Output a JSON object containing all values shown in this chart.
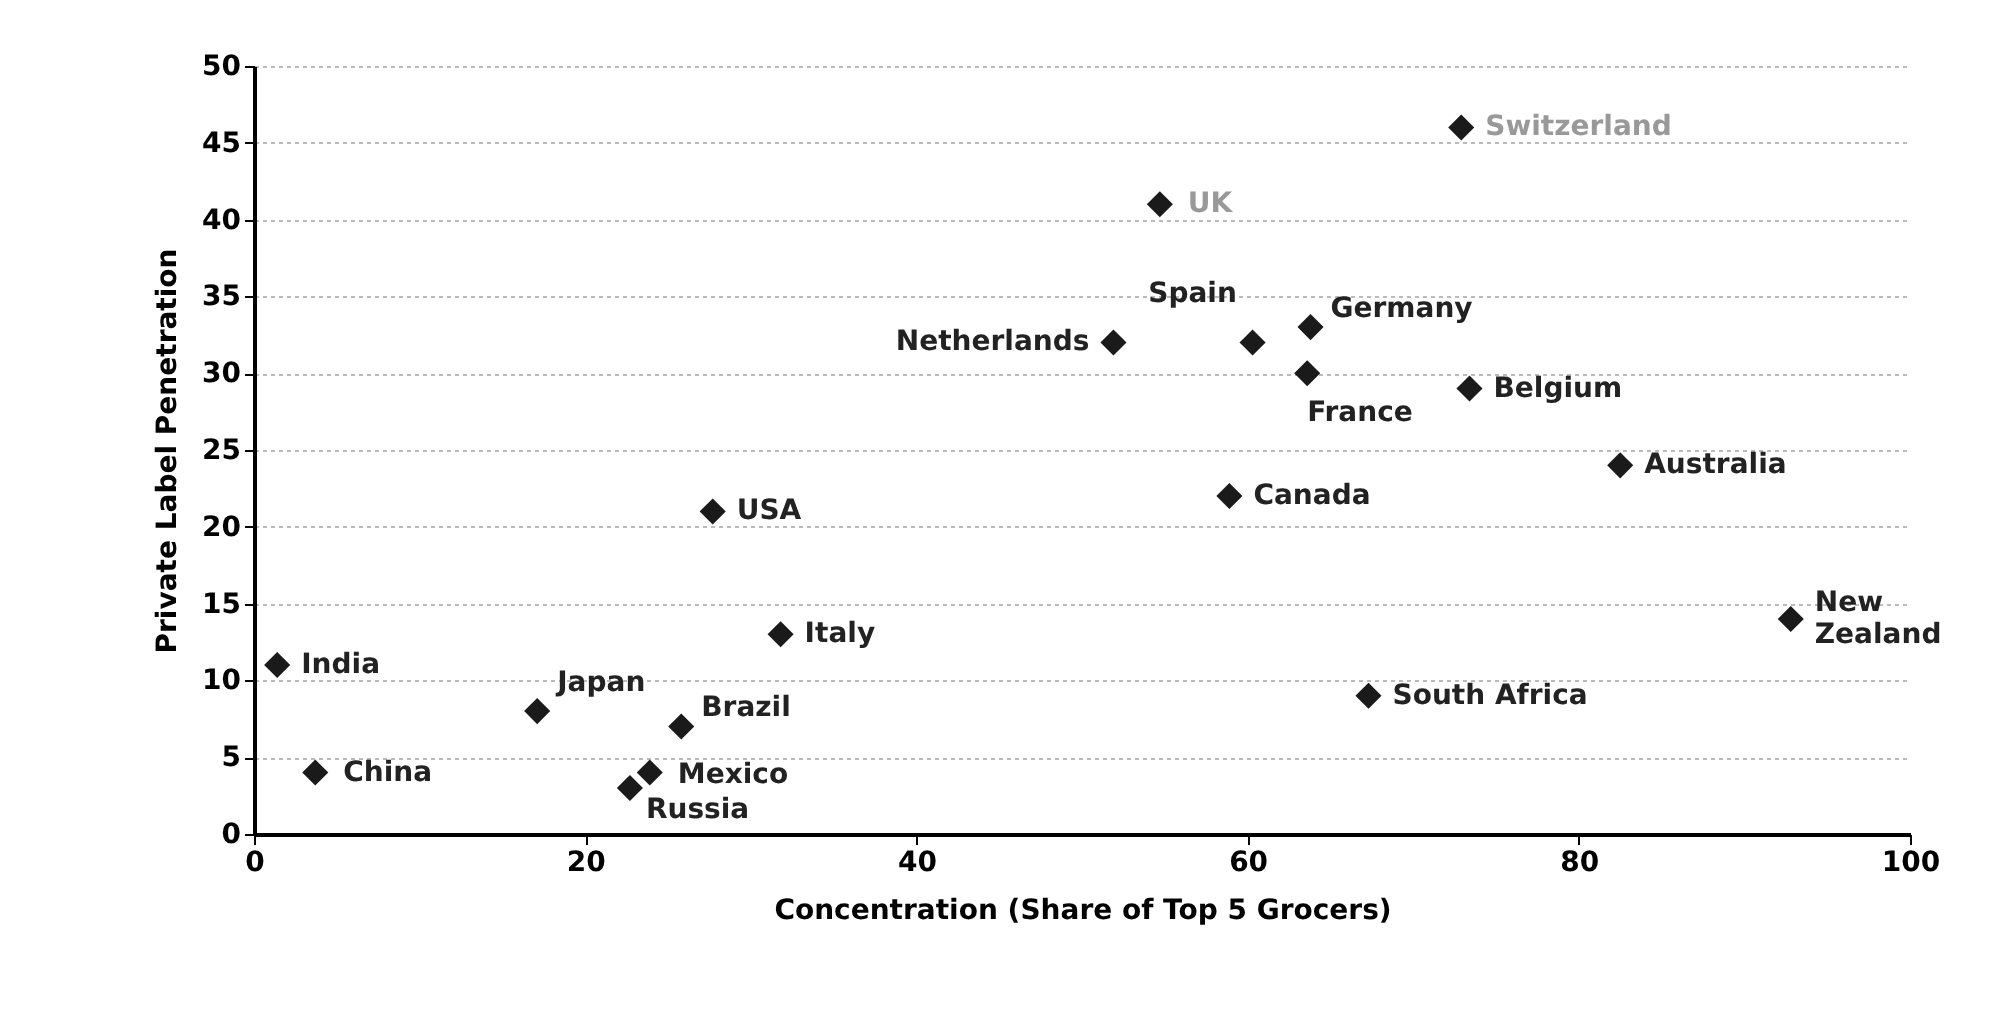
{
  "chart_data": {
    "type": "scatter",
    "xlabel": "Concentration (Share of Top 5 Grocers)",
    "ylabel": "Private Label Penetration",
    "xlim": [
      0,
      100
    ],
    "xticks": [
      0,
      20,
      40,
      60,
      80,
      100
    ],
    "ylim": [
      0,
      50
    ],
    "yticks": [
      0,
      5,
      10,
      15,
      20,
      25,
      30,
      35,
      40,
      45,
      50
    ],
    "grid": "y",
    "marker": "diamond",
    "series": [
      {
        "color": "#1a1a1a",
        "x": [
          1.4,
          3.7,
          17.1,
          25.8,
          23.9,
          22.7,
          27.7,
          31.8,
          51.9,
          54.7,
          60.3,
          63.8,
          63.6,
          58.9,
          73.4,
          72.9,
          82.5,
          67.3,
          92.8
        ],
        "values": [
          11,
          4,
          8,
          7,
          4,
          3,
          21,
          13,
          32,
          41,
          32,
          33,
          30,
          22,
          29,
          46,
          24,
          9,
          14
        ]
      }
    ],
    "annotations": [
      {
        "text": "India",
        "x": 1.4,
        "y": 11
      },
      {
        "text": "China",
        "x": 3.7,
        "y": 4
      },
      {
        "text": "Japan",
        "x": 17.1,
        "y": 8
      },
      {
        "text": "Brazil",
        "x": 25.8,
        "y": 7
      },
      {
        "text": "Mexico",
        "x": 23.9,
        "y": 4
      },
      {
        "text": "Russia",
        "x": 22.7,
        "y": 3
      },
      {
        "text": "USA",
        "x": 27.7,
        "y": 21
      },
      {
        "text": "Italy",
        "x": 31.8,
        "y": 13
      },
      {
        "text": "Netherlands",
        "x": 51.9,
        "y": 32
      },
      {
        "text": "UK",
        "x": 54.7,
        "y": 41
      },
      {
        "text": "Spain",
        "x": 60.3,
        "y": 32
      },
      {
        "text": "Germany",
        "x": 63.8,
        "y": 33
      },
      {
        "text": "France",
        "x": 63.6,
        "y": 30
      },
      {
        "text": "Canada",
        "x": 58.9,
        "y": 22
      },
      {
        "text": "Belgium",
        "x": 73.4,
        "y": 29
      },
      {
        "text": "Switzerland",
        "x": 72.9,
        "y": 46
      },
      {
        "text": "Australia",
        "x": 82.5,
        "y": 24
      },
      {
        "text": "South Africa",
        "x": 67.3,
        "y": 9
      },
      {
        "text": "New Zealand",
        "x": 92.8,
        "y": 14
      }
    ]
  }
}
